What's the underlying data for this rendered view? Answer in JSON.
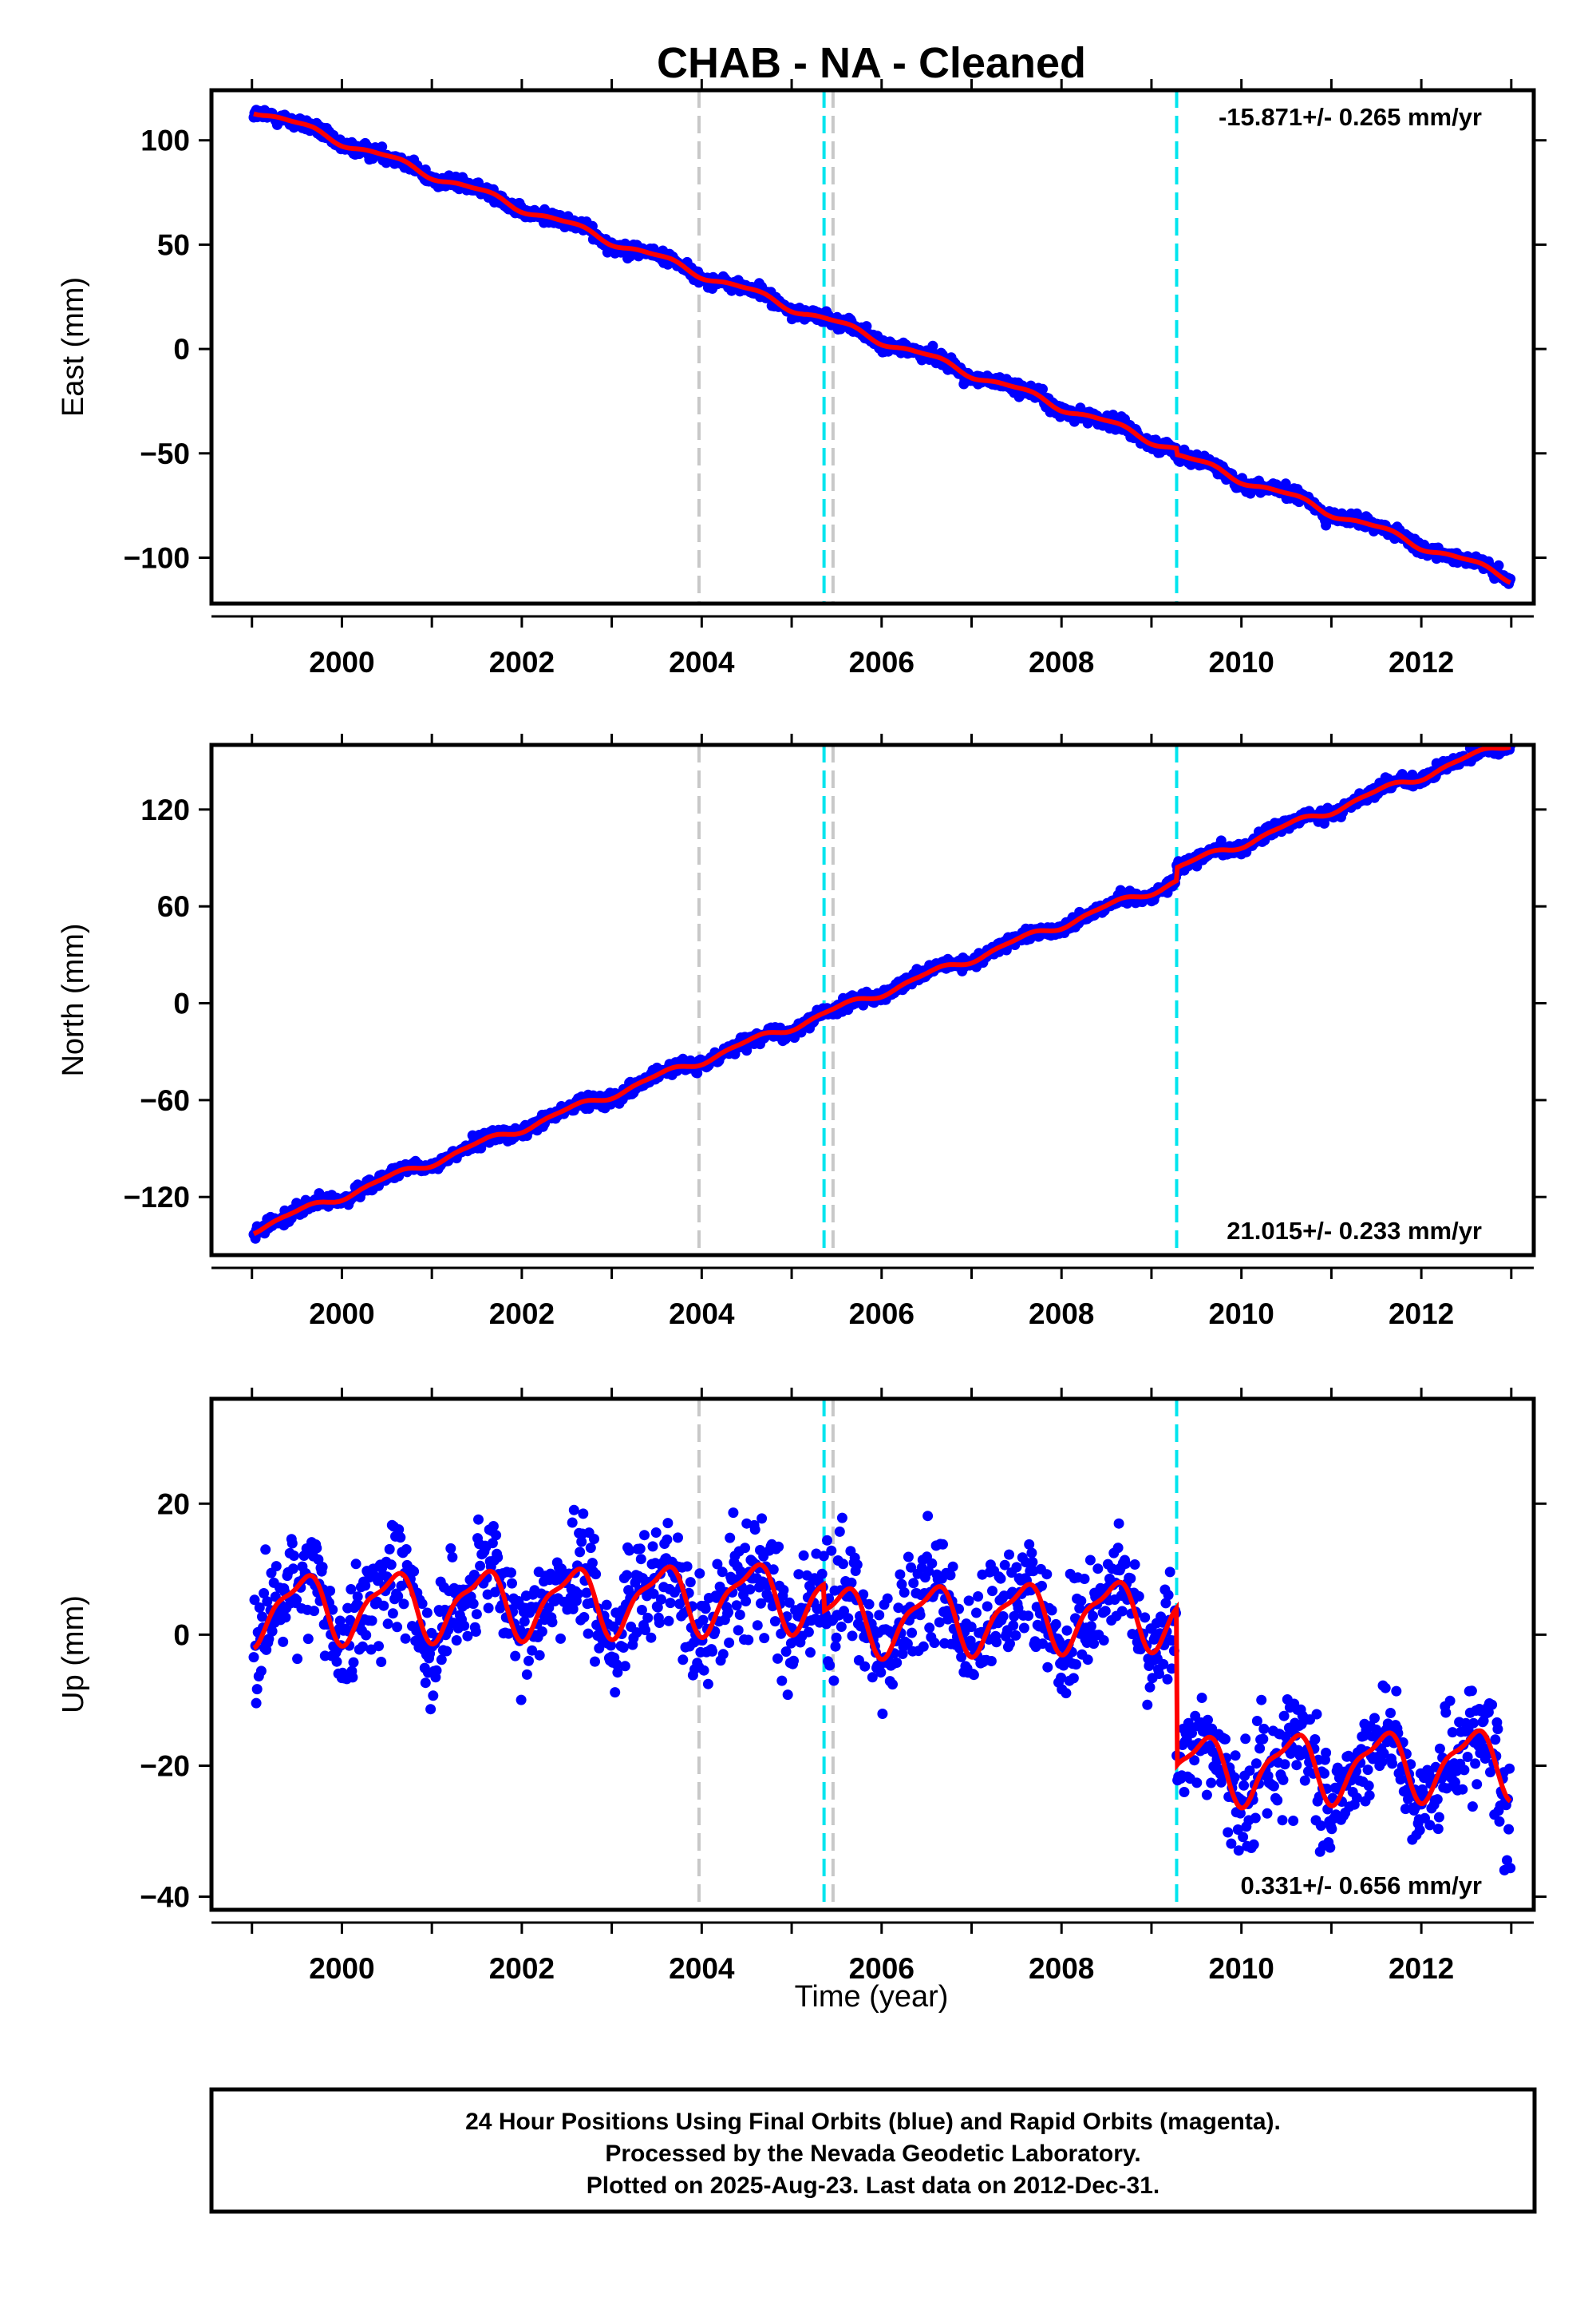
{
  "chart_data": {
    "title": "CHAB  - NA - Cleaned",
    "type": "scatter",
    "x_ticks": [
      "2000",
      "2002",
      "2004",
      "2006",
      "2008",
      "2010",
      "2012"
    ],
    "x_tick_values": [
      2000,
      2002,
      2004,
      2006,
      2008,
      2010,
      2012
    ],
    "xlim": [
      1998.55,
      2013.25
    ],
    "xlabel": "Time (year)",
    "vertical_lines": [
      {
        "x": 2003.97,
        "color": "#c8c8c8"
      },
      {
        "x": 2005.36,
        "color": "#00e5ee"
      },
      {
        "x": 2005.46,
        "color": "#c8c8c8"
      },
      {
        "x": 2009.28,
        "color": "#00e5ee"
      }
    ],
    "series_colors": {
      "points": "#0000ff",
      "model": "#ff0000"
    },
    "data_span": [
      1999.02,
      2012.99
    ],
    "panels": [
      {
        "ylabel": "East (mm)",
        "ylim": [
          -122,
          124
        ],
        "yticks": [
          100,
          50,
          0,
          -50,
          -100
        ],
        "ytick_labels": [
          "100",
          "50",
          "0",
          "−50",
          "−100"
        ],
        "rate_text": "-15.871+/- 0.265 mm/yr",
        "rate_position": "top-right",
        "trend_start": 115,
        "rate": -15.871,
        "seasonal": {
          "amp1": 1.8,
          "amp2": 0.6
        },
        "offsets": [
          {
            "x": 2009.28,
            "dy": -3
          }
        ],
        "noise_sd": 1.6
      },
      {
        "ylabel": "North (mm)",
        "ylim": [
          -156,
          160
        ],
        "yticks": [
          120,
          60,
          0,
          -60,
          -120
        ],
        "ytick_labels": [
          "120",
          "60",
          "0",
          "−60",
          "−120"
        ],
        "rate_text": "21.015+/- 0.233 mm/yr",
        "rate_position": "bottom-right",
        "trend_start": -140,
        "rate": 21.015,
        "seasonal": {
          "amp1": 2.2,
          "amp2": 0.8
        },
        "offsets": [
          {
            "x": 2009.28,
            "dy": 8
          }
        ],
        "noise_sd": 2.0
      },
      {
        "ylabel": "Up (mm)",
        "ylim": [
          -42,
          36
        ],
        "yticks": [
          20,
          0,
          -20,
          -40
        ],
        "ytick_labels": [
          "20",
          "0",
          "−20",
          "−40"
        ],
        "rate_text": "0.331+/- 0.656 mm/yr",
        "rate_position": "bottom-right",
        "trend_start": 4,
        "rate": 0.331,
        "seasonal": {
          "amp1": 4.8,
          "amp2": 1.6
        },
        "offsets": [
          {
            "x": 2005.36,
            "dy": -4
          },
          {
            "x": 2009.28,
            "dy": -24
          }
        ],
        "noise_sd": 4.2
      }
    ]
  },
  "note": {
    "lines": [
      "24 Hour Positions Using Final Orbits (blue) and Rapid Orbits (magenta).",
      "Processed by the Nevada Geodetic Laboratory.",
      "Plotted on 2025-Aug-23. Last data on 2012-Dec-31."
    ]
  }
}
